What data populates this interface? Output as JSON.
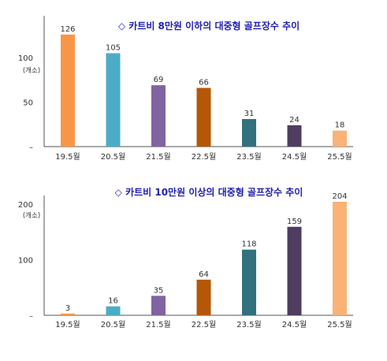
{
  "chart_data": [
    {
      "type": "bar",
      "title": "◇ 카트비 8만원 이하의 대중형 골프장수 추이",
      "ylabel": "(개소)",
      "categories": [
        "19.5월",
        "20.5월",
        "21.5월",
        "22.5월",
        "23.5월",
        "24.5월",
        "25.5월"
      ],
      "values": [
        126,
        105,
        69,
        66,
        31,
        24,
        18
      ],
      "bar_colors": [
        "#F79646",
        "#4BACC6",
        "#8064A2",
        "#B65708",
        "#31727E",
        "#4F3D60",
        "#FAB276"
      ],
      "ylim": [
        0,
        140
      ],
      "yticks": [
        "–",
        "50",
        "100"
      ],
      "ytick_values": [
        0,
        50,
        100
      ],
      "grid": false,
      "legend": "none"
    },
    {
      "type": "bar",
      "title": "◇ 카트비 10만원 이상의 대중형 골프장수 추이",
      "ylabel": "(개소)",
      "categories": [
        "19.5월",
        "20.5월",
        "21.5월",
        "22.5월",
        "23.5월",
        "24.5월",
        "25.5월"
      ],
      "values": [
        3,
        16,
        35,
        64,
        118,
        159,
        204
      ],
      "bar_colors": [
        "#F79646",
        "#4BACC6",
        "#8064A2",
        "#B65708",
        "#31727E",
        "#4F3D60",
        "#FAB276"
      ],
      "ylim": [
        0,
        204
      ],
      "yticks": [
        "–",
        "100",
        "200"
      ],
      "ytick_values": [
        0,
        100,
        200
      ],
      "grid": false,
      "legend": "none"
    }
  ]
}
